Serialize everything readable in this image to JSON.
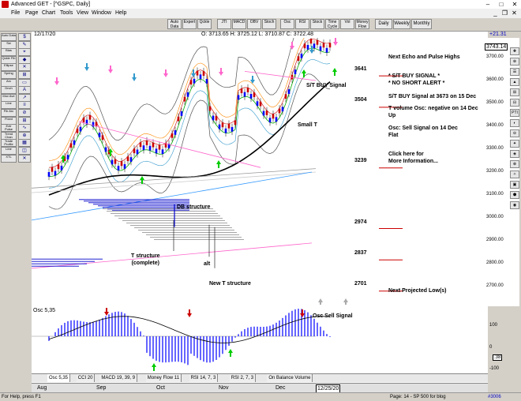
{
  "window": {
    "title": "Advanced GET - [^GSPC, Daily]",
    "minimize": "–",
    "maximize": "□",
    "close": "✕"
  },
  "menu": [
    "File",
    "Page",
    "Chart",
    "Tools",
    "View",
    "Window",
    "Help"
  ],
  "mdi": {
    "minimize": "_",
    "restore": "❐",
    "close": "✕"
  },
  "toolbar": {
    "buttons": [
      "Auto Data",
      "Expert",
      "Qckle",
      "JTI",
      "MACD",
      "OBV",
      "Stoch",
      "Osc",
      "RSI",
      "Stock",
      "Time Cycle",
      "Vol",
      "Money Flow"
    ],
    "periods": [
      "Daily",
      "Weekly",
      "Monthly"
    ]
  },
  "left_tools": {
    "left": [
      "Auto Data",
      "Sw",
      "Bias",
      "Qckle Fib",
      "Ellipse",
      "Spring",
      "Arc",
      "Dnch",
      "Mov Ave",
      "Line",
      "Fib Arc",
      "Fixed",
      "Extr Pulse",
      "Trend Chan",
      "Trade Profile",
      "Line",
      "XTL"
    ],
    "right": [
      "$",
      "✎",
      "⌖",
      "◆",
      "✕",
      "⊞",
      "▭",
      "A",
      "↗",
      "≡",
      "⊘",
      "⊞",
      "∿",
      "⊕",
      "▦",
      "◫",
      "✕"
    ]
  },
  "chart": {
    "date": "12/17/20",
    "ohlc": "O: 3713.65   H: 3725.12   L: 3710.87   C: 3722.48",
    "change": "+21.31",
    "last_price": "3743.14",
    "osc_label": "Osc 5,35",
    "price_axis": [
      "3700.00",
      "3600.00",
      "3500.00",
      "3400.00",
      "3300.00",
      "3200.00",
      "3100.00",
      "3000.00",
      "2900.00",
      "2800.00",
      "2700.00"
    ],
    "osc_axis": [
      "100",
      "0",
      ".38",
      "-100"
    ],
    "levels": [
      "3641",
      "3504",
      "3239",
      "2974",
      "2837",
      "2701"
    ],
    "annotations": {
      "st_buy": "S/T BUY Signal",
      "small_t": "Small T",
      "db_structure": "DB structure",
      "t_structure": "T structure\n(complete)",
      "alt": "alt",
      "new_t": "New T structure",
      "osc_sell": "Osc Sell Signal"
    },
    "notes": [
      "Next Echo and Pulse Highs",
      "* S/T BUY SIGNAL *\n* NO SHORT ALERT *",
      "S/T BUY Signal at 3673 on 15 Dec",
      "T volume Osc: negative on 14 Dec\nUp",
      "Osc: Sell Signal on 14 Dec\nFlat",
      "Click here for\nMore Information...",
      "Next Projected Low(s)"
    ],
    "right_tools": [
      "✚",
      "⊕",
      "☰",
      "▲",
      "⊞",
      "⊟",
      "PTI",
      "◐",
      "⊖",
      "✦",
      "◈",
      "⊗",
      "✧",
      "▣",
      "⬢",
      "◉"
    ]
  },
  "tabs": [
    "Osc 5,35",
    "CCI 20",
    "MACD 19, 39, 9",
    "Money Flow 11",
    "RSI 14, 7, 3",
    "RSI 2, 7, 3",
    "On Balance Volume"
  ],
  "dates": [
    "Aug",
    "Sep",
    "Oct",
    "Nov",
    "Dec",
    "12/25/20"
  ],
  "status": {
    "help": "For Help, press F1",
    "page": "Page: 14 - SP 500 for blog",
    "num": "#3006"
  },
  "colors": {
    "up": "#0000ff",
    "down": "#cc0000",
    "arrow_up": "#00cc00",
    "arrow_magenta": "#ff66cc",
    "arrow_cyan": "#3399cc"
  }
}
